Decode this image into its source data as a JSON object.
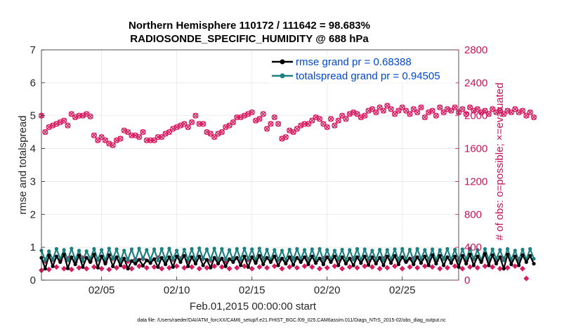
{
  "chart_data": {
    "type": "line",
    "title_line1": "Northern Hemisphere 110172 / 111642 = 98.683%",
    "title_line2": "RADIOSONDE_SPECIFIC_HUMIDITY @ 688 hPa",
    "xlabel": "Feb.01,2015 00:00:00 start",
    "ylabel": "rmse and totalspread",
    "ylabel_right": "# of obs: o=possible; ×=evaluated",
    "xlim": [
      1,
      28.75
    ],
    "ylim": [
      0,
      7
    ],
    "ylim_right": [
      0,
      2800
    ],
    "x_ticks": [
      {
        "value": 5,
        "label": "02/05"
      },
      {
        "value": 10,
        "label": "02/10"
      },
      {
        "value": 15,
        "label": "02/15"
      },
      {
        "value": 20,
        "label": "02/20"
      },
      {
        "value": 25,
        "label": "02/25"
      }
    ],
    "y_ticks": [
      "0",
      "1",
      "2",
      "3",
      "4",
      "5",
      "6",
      "7"
    ],
    "y_ticks_right": [
      "0",
      "400",
      "800",
      "1200",
      "1600",
      "2000",
      "2400",
      "2800"
    ],
    "x_start": 1.0,
    "x_step": 0.25,
    "series": [
      {
        "name": "rmse",
        "legend": "rmse grand pr = 0.68388",
        "color": "#000000",
        "axis": "left",
        "values": [
          0.68,
          0.35,
          0.75,
          0.42,
          0.72,
          0.55,
          0.78,
          0.36,
          0.7,
          0.48,
          0.75,
          0.4,
          0.68,
          0.55,
          0.78,
          0.38,
          0.72,
          0.5,
          0.76,
          0.42,
          0.7,
          0.45,
          0.66,
          0.35,
          0.58,
          0.5,
          0.62,
          0.44,
          0.6,
          0.52,
          0.64,
          0.4,
          0.68,
          0.48,
          0.7,
          0.4,
          0.72,
          0.55,
          0.74,
          0.42,
          0.7,
          0.5,
          0.72,
          0.45,
          0.62,
          0.38,
          0.68,
          0.5,
          0.66,
          0.42,
          0.64,
          0.55,
          0.68,
          0.45,
          0.72,
          0.4,
          0.7,
          0.52,
          0.74,
          0.48,
          0.68,
          0.55,
          0.72,
          0.45,
          0.66,
          0.5,
          0.7,
          0.46,
          0.68,
          0.55,
          0.7,
          0.48,
          0.72,
          0.52,
          0.66,
          0.48,
          0.7,
          0.55,
          0.72,
          0.45,
          0.7,
          0.5,
          0.66,
          0.45,
          0.7,
          0.52,
          0.72,
          0.46,
          0.7,
          0.5,
          0.68,
          0.45,
          0.72,
          0.52,
          0.74,
          0.48,
          0.7,
          0.55,
          0.66,
          0.48,
          0.7,
          0.52,
          0.72,
          0.45,
          0.76,
          0.5,
          0.74,
          0.45,
          0.7,
          0.52,
          0.72,
          0.4,
          0.74,
          0.5,
          0.78,
          0.45,
          0.72,
          0.55,
          0.8,
          0.45,
          0.76,
          0.5,
          0.7,
          0.35,
          0.78,
          0.48,
          0.72,
          0.45,
          0.76,
          0.55,
          0.74,
          0.5
        ]
      },
      {
        "name": "totalspread",
        "legend": "totalspread grand pr = 0.94505",
        "color": "#1a8080",
        "axis": "left",
        "values": [
          0.9,
          0.6,
          0.88,
          0.62,
          0.95,
          0.65,
          0.92,
          0.6,
          0.96,
          0.62,
          0.9,
          0.58,
          0.88,
          0.65,
          0.95,
          0.62,
          0.92,
          0.6,
          0.96,
          0.65,
          0.94,
          0.58,
          0.9,
          0.62,
          0.94,
          0.6,
          0.96,
          0.65,
          0.92,
          0.62,
          0.94,
          0.6,
          0.95,
          0.62,
          0.96,
          0.64,
          0.9,
          0.6,
          0.93,
          0.62,
          0.95,
          0.6,
          0.97,
          0.65,
          0.94,
          0.62,
          0.96,
          0.6,
          0.95,
          0.63,
          0.92,
          0.6,
          0.95,
          0.62,
          0.96,
          0.64,
          0.94,
          0.6,
          0.96,
          0.62,
          0.93,
          0.6,
          0.92,
          0.62,
          0.9,
          0.6,
          0.93,
          0.62,
          0.95,
          0.64,
          0.92,
          0.6,
          0.94,
          0.62,
          0.95,
          0.6,
          0.92,
          0.62,
          0.9,
          0.64,
          0.93,
          0.6,
          0.92,
          0.62,
          0.95,
          0.6,
          0.94,
          0.64,
          0.9,
          0.62,
          0.93,
          0.6,
          0.92,
          0.62,
          0.94,
          0.6,
          0.95,
          0.62,
          0.93,
          0.6,
          0.95,
          0.64,
          0.92,
          0.62,
          0.94,
          0.6,
          0.92,
          0.64,
          0.95,
          0.62,
          0.93,
          0.6,
          0.94,
          0.62,
          0.96,
          0.64,
          0.92,
          0.6,
          0.95,
          0.62,
          0.94,
          0.64,
          0.92,
          0.6,
          0.95,
          0.62,
          0.9,
          0.6,
          0.93,
          0.62,
          0.95,
          0.65
        ]
      },
      {
        "name": "obs_possible",
        "color": "#d81b60",
        "axis": "right",
        "marker": "o",
        "values": [
          2000,
          1800,
          1860,
          1880,
          1900,
          1920,
          1940,
          1880,
          2020,
          1980,
          2000,
          2000,
          2020,
          1990,
          1760,
          1700,
          1740,
          1700,
          1660,
          1640,
          1700,
          1720,
          1820,
          1800,
          1760,
          1760,
          1740,
          1800,
          1700,
          1700,
          1700,
          1740,
          1740,
          1780,
          1800,
          1840,
          1860,
          1880,
          1900,
          1860,
          1920,
          2000,
          1900,
          1900,
          1800,
          1780,
          1740,
          1780,
          1800,
          1860,
          1880,
          1920,
          1980,
          1980,
          2000,
          2020,
          2040,
          1940,
          1960,
          2020,
          1840,
          1900,
          1980,
          1900,
          1720,
          1740,
          1820,
          1800,
          1840,
          1880,
          1900,
          1900,
          1940,
          1980,
          1960,
          1900,
          1860,
          1960,
          1880,
          1940,
          2000,
          1960,
          2020,
          2040,
          2020,
          1980,
          2000,
          2060,
          2080,
          2040,
          2100,
          2060,
          2120,
          2080,
          2020,
          2060,
          2100,
          2060,
          2020,
          2080,
          2040,
          2100,
          1980,
          2040,
          2060,
          2000,
          2100,
          2040,
          2080,
          2060,
          2100,
          2040,
          2080,
          2020,
          2100,
          2060,
          2080,
          2040,
          2060,
          2020,
          2080,
          2040,
          2060,
          2020,
          2060,
          2040,
          2080,
          2040,
          2060,
          2000,
          2040,
          1980
        ]
      },
      {
        "name": "obs_evaluated",
        "color": "#d81b60",
        "axis": "right",
        "marker": "x",
        "values": [
          120,
          230,
          130,
          250,
          160,
          240,
          140,
          260,
          130,
          220,
          150,
          270,
          140,
          230,
          160,
          250,
          140,
          220,
          130,
          260,
          150,
          240,
          160,
          230,
          140,
          250,
          170,
          260,
          150,
          240,
          160,
          270,
          140,
          230,
          150,
          250,
          170,
          260,
          150,
          240,
          160,
          230,
          140,
          260,
          150,
          240,
          170,
          250,
          160,
          230,
          140,
          260,
          150,
          240,
          170,
          250,
          140,
          230,
          160,
          260,
          150,
          240,
          170,
          250,
          140,
          230,
          160,
          260,
          150,
          240,
          170,
          250,
          160,
          230,
          140,
          260,
          150,
          240,
          170,
          250,
          140,
          230,
          160,
          260,
          150,
          240,
          170,
          250,
          160,
          230,
          140,
          260,
          150,
          240,
          170,
          250,
          140,
          230,
          160,
          260,
          150,
          240,
          170,
          250,
          160,
          230,
          140,
          260,
          150,
          240,
          170,
          250,
          140,
          230,
          160,
          260,
          150,
          240,
          170,
          250,
          160,
          230,
          140,
          260,
          150,
          240,
          170,
          250,
          140,
          20
        ]
      }
    ],
    "footer": "data file: /Users/raeder/DAI/ATM_forcXX/CAM6_setup/f.e21.FHIST_BGC.f09_025.CAM6assim.011/Diags_NTrS_2015-02/obs_diag_output.nc"
  }
}
